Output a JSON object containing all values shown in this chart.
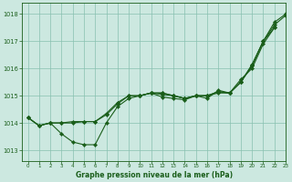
{
  "xlabel": "Graphe pression niveau de la mer (hPa)",
  "xlim": [
    -0.5,
    23
  ],
  "ylim": [
    1012.6,
    1018.4
  ],
  "yticks": [
    1013,
    1014,
    1015,
    1016,
    1017,
    1018
  ],
  "xticks": [
    0,
    1,
    2,
    3,
    4,
    5,
    6,
    7,
    8,
    9,
    10,
    11,
    12,
    13,
    14,
    15,
    16,
    17,
    18,
    19,
    20,
    21,
    22,
    23
  ],
  "background_color": "#cce8e0",
  "grid_color": "#88c0b0",
  "line_color": "#1a5e1a",
  "series": [
    {
      "x": [
        0,
        1,
        2,
        3,
        4,
        5,
        6,
        7,
        8,
        9,
        10,
        11,
        12,
        13,
        14,
        15,
        16,
        17,
        18,
        19,
        20,
        21,
        22
      ],
      "y": [
        1014.2,
        1013.9,
        1014.0,
        1013.6,
        1013.3,
        1013.2,
        1013.2,
        1014.0,
        1014.6,
        1014.9,
        1015.0,
        1015.1,
        1014.95,
        1014.9,
        1014.85,
        1015.0,
        1014.9,
        1015.2,
        1015.1,
        1015.6,
        1016.0,
        1016.9,
        1017.5
      ]
    },
    {
      "x": [
        0,
        1,
        2,
        3,
        4,
        5,
        6,
        7,
        8,
        9,
        10,
        11,
        12,
        13,
        14,
        15,
        16,
        17,
        18,
        19,
        20,
        21,
        22
      ],
      "y": [
        1014.2,
        1013.9,
        1014.0,
        1014.0,
        1014.0,
        1014.05,
        1014.05,
        1014.3,
        1014.7,
        1015.0,
        1015.0,
        1015.1,
        1015.1,
        1015.0,
        1014.9,
        1015.0,
        1015.0,
        1015.1,
        1015.1,
        1015.5,
        1016.1,
        1017.0,
        1017.5
      ]
    },
    {
      "x": [
        0,
        1,
        2,
        3,
        4,
        5,
        6,
        7,
        8,
        9,
        10,
        11,
        12,
        13,
        14,
        15,
        16,
        17,
        18,
        19,
        20,
        21,
        22,
        23
      ],
      "y": [
        1014.2,
        1013.9,
        1014.0,
        1014.0,
        1014.05,
        1014.05,
        1014.05,
        1014.35,
        1014.75,
        1015.0,
        1015.0,
        1015.1,
        1015.1,
        1015.0,
        1014.9,
        1015.0,
        1015.0,
        1015.15,
        1015.1,
        1015.5,
        1016.15,
        1017.0,
        1017.7,
        1018.0
      ]
    },
    {
      "x": [
        10,
        11,
        12,
        13,
        14,
        15,
        16,
        17,
        18,
        19,
        20,
        21,
        22,
        23
      ],
      "y": [
        1015.0,
        1015.1,
        1015.05,
        1015.0,
        1014.9,
        1015.0,
        1015.0,
        1015.15,
        1015.1,
        1015.5,
        1016.1,
        1017.0,
        1017.6,
        1017.95
      ]
    }
  ]
}
